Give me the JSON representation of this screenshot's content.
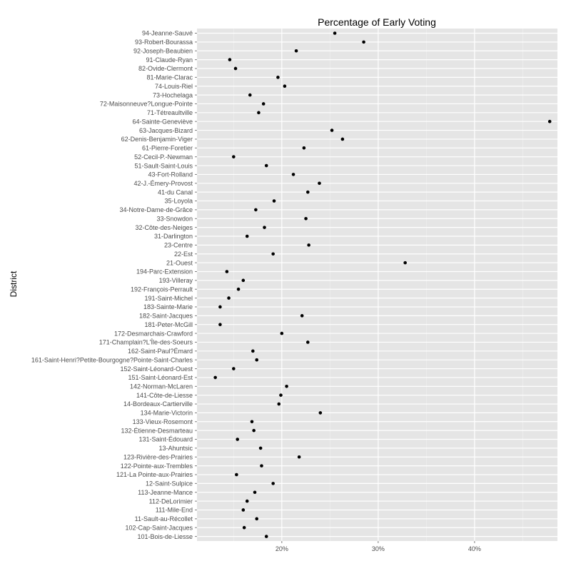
{
  "chart_data": {
    "type": "scatter",
    "title": "Percentage of Early Voting",
    "xlabel": "",
    "ylabel": "District",
    "xlim": [
      11.2,
      48.6
    ],
    "xticks": [
      20,
      30,
      40
    ],
    "xtick_labels": [
      "20%",
      "30%",
      "40%"
    ],
    "grid": true,
    "legend": "none",
    "colors": {
      "panel": "#e5e5e5",
      "grid_major": "#ffffff",
      "grid_minor": "#f2f2f2",
      "point": "#000000",
      "tick_text": "#4d4d4d"
    },
    "categories": [
      "94-Jeanne-Sauvé",
      "93-Robert-Bourassa",
      "92-Joseph-Beaubien",
      "91-Claude-Ryan",
      "82-Ovide-Clermont",
      "81-Marie-Clarac",
      "74-Louis-Riel",
      "73-Hochelaga",
      "72-Maisonneuve?Longue-Pointe",
      "71-Tétreaultville",
      "64-Sainte-Geneviève",
      "63-Jacques-Bizard",
      "62-Denis-Benjamin-Viger",
      "61-Pierre-Foretier",
      "52-Cecil-P.-Newman",
      "51-Sault-Saint-Louis",
      "43-Fort-Rolland",
      "42-J.-Émery-Provost",
      "41-du Canal",
      "35-Loyola",
      "34-Notre-Dame-de-Grâce",
      "33-Snowdon",
      "32-Côte-des-Neiges",
      "31-Darlington",
      "23-Centre",
      "22-Est",
      "21-Ouest",
      "194-Parc-Extension",
      "193-Villeray",
      "192-François-Perrault",
      "191-Saint-Michel",
      "183-Sainte-Marie",
      "182-Saint-Jacques",
      "181-Peter-McGill",
      "172-Desmarchais-Crawford",
      "171-Champlain?L'Île-des-Soeurs",
      "162-Saint-Paul?Émard",
      "161-Saint-Henri?Petite-Bourgogne?Pointe-Saint-Charles",
      "152-Saint-Léonard-Ouest",
      "151-Saint-Léonard-Est",
      "142-Norman-McLaren",
      "141-Côte-de-Liesse",
      "14-Bordeaux-Cartierville",
      "134-Marie-Victorin",
      "133-Vieux-Rosemont",
      "132-Étienne-Desmarteau",
      "131-Saint-Édouard",
      "13-Ahuntsic",
      "123-Rivière-des-Prairies",
      "122-Pointe-aux-Trembles",
      "121-La Pointe-aux-Prairies",
      "12-Saint-Sulpice",
      "113-Jeanne-Mance",
      "112-DeLorimier",
      "111-Mile-End",
      "11-Sault-au-Récollet",
      "102-Cap-Saint-Jacques",
      "101-Bois-de-Liesse"
    ],
    "values": [
      25.5,
      28.5,
      21.5,
      14.6,
      15.2,
      19.6,
      20.3,
      16.7,
      18.1,
      17.6,
      47.8,
      25.2,
      26.3,
      22.3,
      15.0,
      18.4,
      21.2,
      23.9,
      22.7,
      19.2,
      17.3,
      22.5,
      18.2,
      16.4,
      22.8,
      19.1,
      32.8,
      14.3,
      16.0,
      15.5,
      14.5,
      13.6,
      22.1,
      13.6,
      20.0,
      22.7,
      17.0,
      17.4,
      15.0,
      13.1,
      20.5,
      19.9,
      19.7,
      24.0,
      16.9,
      17.1,
      15.4,
      17.8,
      21.8,
      17.9,
      15.3,
      19.1,
      17.2,
      16.4,
      16.0,
      17.4,
      16.1,
      18.4
    ]
  }
}
